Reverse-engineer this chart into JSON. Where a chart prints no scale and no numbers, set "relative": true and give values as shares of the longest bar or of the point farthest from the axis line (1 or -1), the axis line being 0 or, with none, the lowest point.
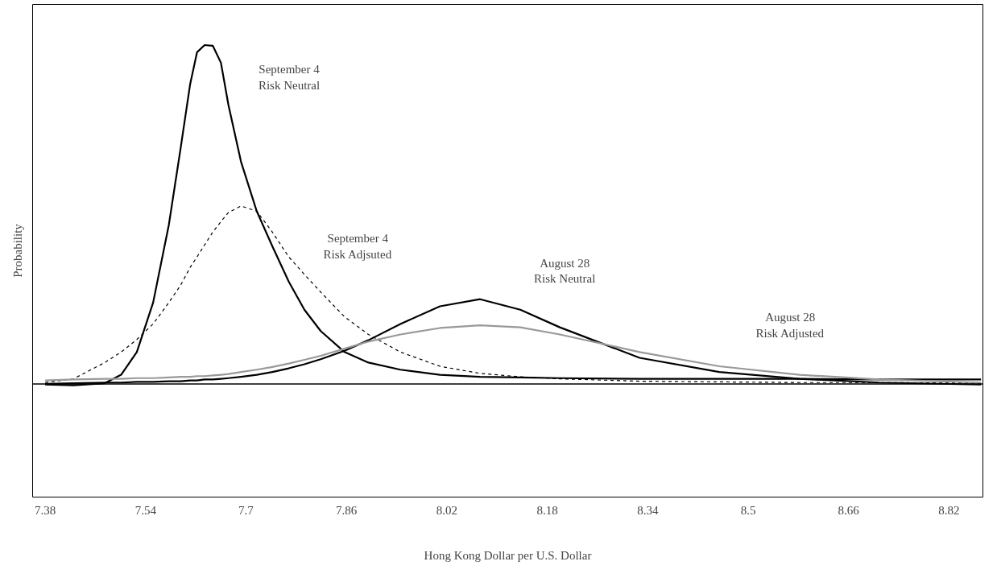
{
  "chart_data": {
    "type": "line",
    "relative": true,
    "xlabel": "Hong Kong Dollar per U.S. Dollar",
    "ylabel": "Probability",
    "x": [
      7.38,
      7.425,
      7.475,
      7.501,
      7.526,
      7.552,
      7.577,
      7.596,
      7.611,
      7.622,
      7.634,
      7.647,
      7.66,
      7.672,
      7.692,
      7.717,
      7.742,
      7.768,
      7.793,
      7.819,
      7.857,
      7.895,
      7.946,
      8.009,
      8.073,
      8.137,
      8.2,
      8.327,
      8.454,
      8.582,
      8.709,
      8.871
    ],
    "xlim": [
      7.36,
      8.874
    ],
    "xticks": [
      7.38,
      7.54,
      7.7,
      7.86,
      8.02,
      8.18,
      8.34,
      8.5,
      8.66,
      8.82
    ],
    "grid": false,
    "tick_labels": "x",
    "marker": "none",
    "series": [
      {
        "name": "September 4\nRisk Neutral",
        "color": "#000000",
        "line_style": "solid",
        "values": [
          -0.002,
          -0.004,
          0.002,
          0.027,
          0.094,
          0.24,
          0.469,
          0.698,
          0.885,
          0.979,
          1.0,
          0.998,
          0.948,
          0.823,
          0.656,
          0.51,
          0.406,
          0.302,
          0.219,
          0.156,
          0.094,
          0.063,
          0.042,
          0.027,
          0.021,
          0.019,
          0.017,
          0.015,
          0.015,
          0.015,
          0.013,
          0.013
        ]
      },
      {
        "name": "September 4\nRisk Adjsuted",
        "color": "#000000",
        "line_style": "dashed",
        "values": [
          0.004,
          0.015,
          0.063,
          0.094,
          0.131,
          0.177,
          0.24,
          0.292,
          0.344,
          0.375,
          0.41,
          0.448,
          0.479,
          0.506,
          0.525,
          0.51,
          0.448,
          0.375,
          0.323,
          0.271,
          0.198,
          0.146,
          0.094,
          0.052,
          0.031,
          0.021,
          0.015,
          0.008,
          0.006,
          0.004,
          0.004,
          0.002
        ]
      },
      {
        "name": "August 28\nRisk Neutral",
        "color": "#000000",
        "line_style": "solid",
        "values": [
          0.0,
          0.002,
          0.004,
          0.004,
          0.006,
          0.006,
          0.008,
          0.008,
          0.01,
          0.01,
          0.013,
          0.013,
          0.015,
          0.017,
          0.021,
          0.027,
          0.035,
          0.046,
          0.058,
          0.073,
          0.098,
          0.129,
          0.177,
          0.229,
          0.25,
          0.219,
          0.167,
          0.077,
          0.035,
          0.015,
          0.004,
          -0.002
        ]
      },
      {
        "name": "August 28\nRisk Adjusted",
        "color": "#999999",
        "line_style": "solid",
        "values": [
          0.01,
          0.013,
          0.015,
          0.015,
          0.017,
          0.017,
          0.019,
          0.021,
          0.021,
          0.023,
          0.023,
          0.025,
          0.027,
          0.029,
          0.035,
          0.042,
          0.05,
          0.06,
          0.071,
          0.083,
          0.104,
          0.125,
          0.146,
          0.165,
          0.173,
          0.167,
          0.146,
          0.094,
          0.052,
          0.027,
          0.013,
          0.004
        ]
      }
    ]
  }
}
